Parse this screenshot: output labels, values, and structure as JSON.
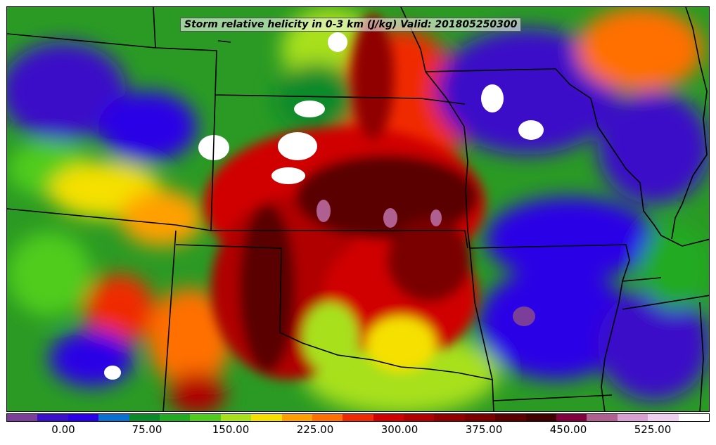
{
  "title": "Storm relative helicity in 0-3 km (J/kg) Valid: 201805250300",
  "colorbar": {
    "ticks": [
      "0.00",
      "75.00",
      "150.00",
      "225.00",
      "300.00",
      "375.00",
      "450.00",
      "525.00"
    ],
    "colors": [
      "#7b3f9a",
      "#3a10c8",
      "#2a00e6",
      "#0b6fd0",
      "#0a8a2a",
      "#22aa22",
      "#4fcc1e",
      "#a8e01a",
      "#f5e000",
      "#ffa000",
      "#ff7000",
      "#f02a00",
      "#d00000",
      "#b00000",
      "#900000",
      "#7a0000",
      "#5a0000",
      "#400000",
      "#800040",
      "#b06090",
      "#d8a0d0",
      "#f0d0f0",
      "#ffffff"
    ]
  },
  "map": {
    "background_color": "#2a9a24",
    "boundary_color": "#000000"
  }
}
